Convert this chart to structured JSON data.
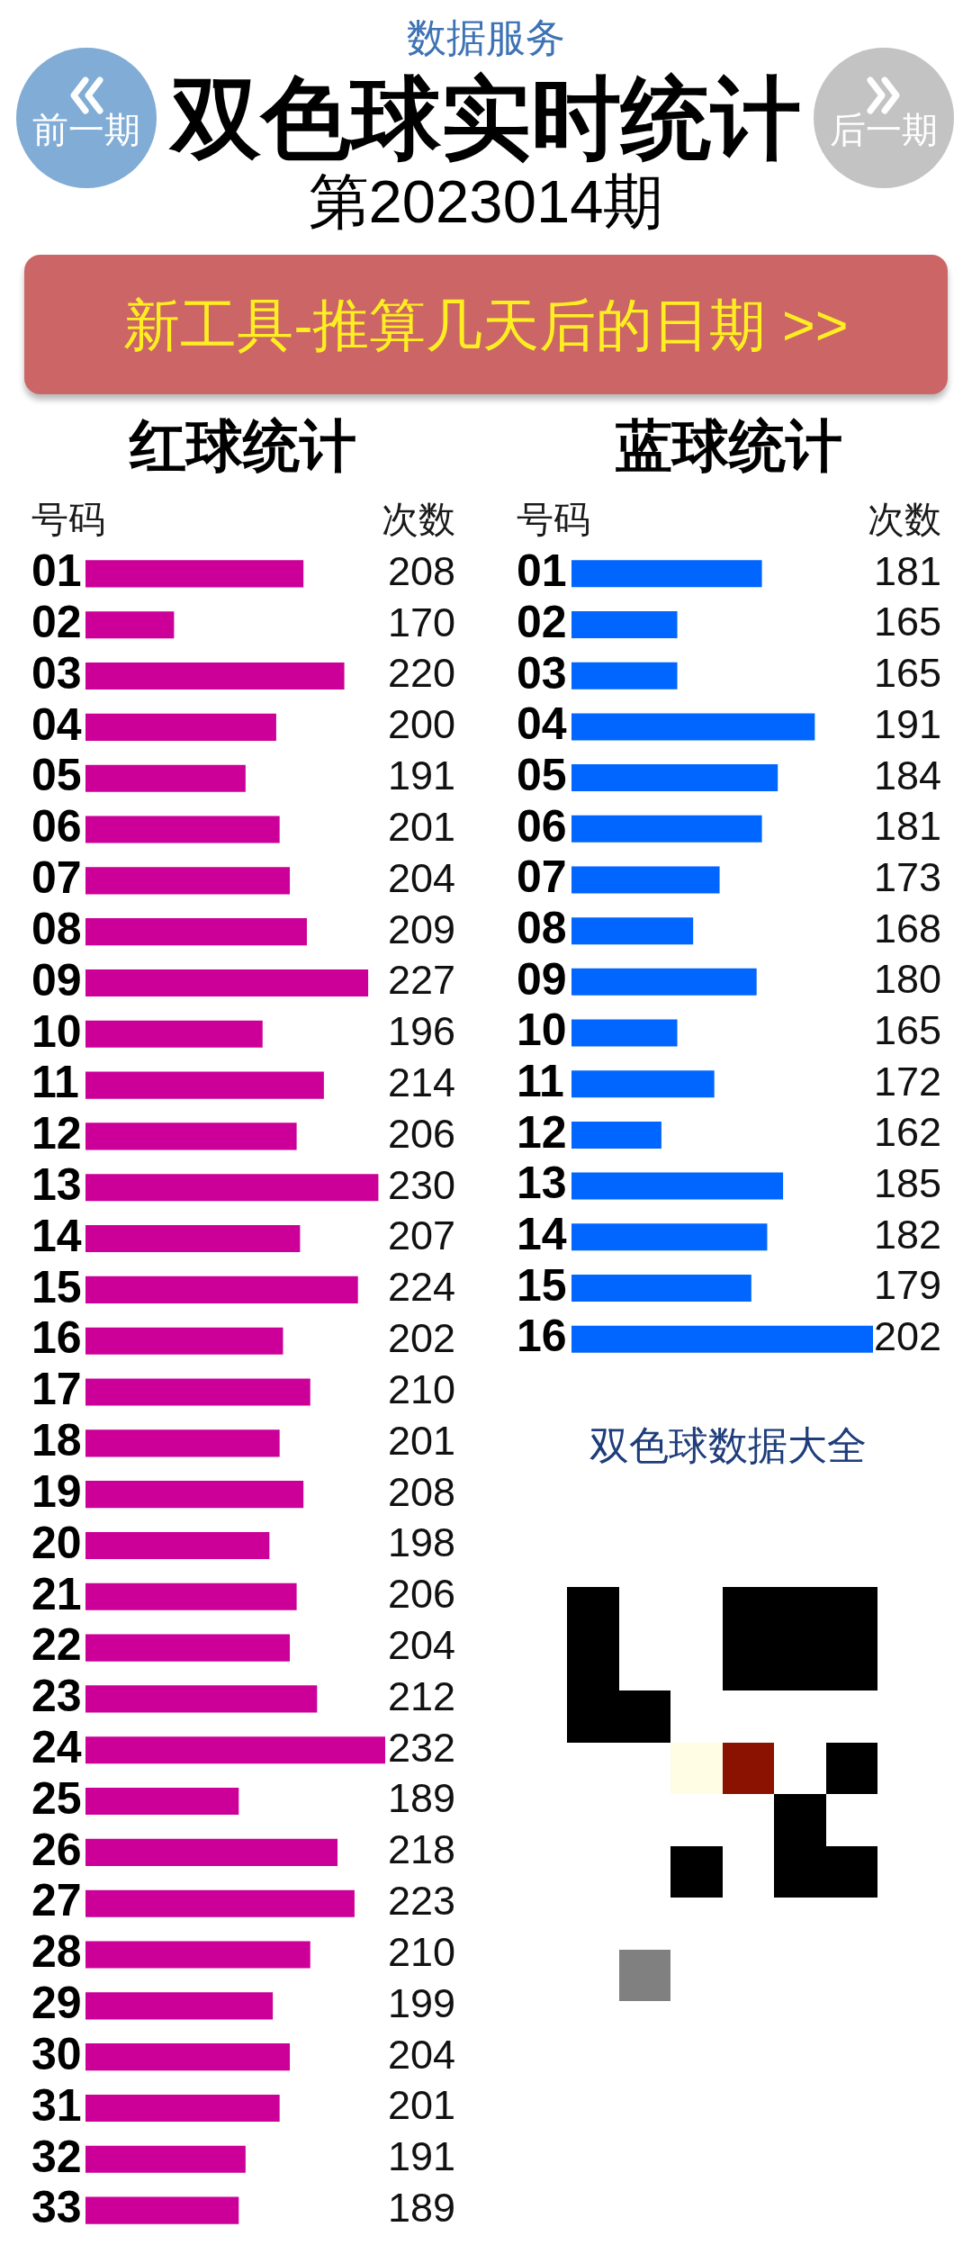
{
  "chart_data": [
    {
      "type": "bar",
      "orientation": "horizontal",
      "title": "红球统计",
      "ylabel": "号码",
      "xlabel": "次数",
      "categories": [
        "01",
        "02",
        "03",
        "04",
        "05",
        "06",
        "07",
        "08",
        "09",
        "10",
        "11",
        "12",
        "13",
        "14",
        "15",
        "16",
        "17",
        "18",
        "19",
        "20",
        "21",
        "22",
        "23",
        "24",
        "25",
        "26",
        "27",
        "28",
        "29",
        "30",
        "31",
        "32",
        "33"
      ],
      "values": [
        208,
        170,
        220,
        200,
        191,
        201,
        204,
        209,
        227,
        196,
        214,
        206,
        230,
        207,
        224,
        202,
        210,
        201,
        208,
        198,
        206,
        204,
        212,
        232,
        189,
        218,
        223,
        210,
        199,
        204,
        201,
        191,
        189
      ],
      "color": "#cc0099",
      "xlim": [
        144,
        232
      ],
      "tick_labels": "y",
      "data_labels": true,
      "annotations": [
        "数据服务",
        "双色球实时统计",
        "第2023014期",
        "前一期",
        "后一期",
        "新工具-推算几天后的日期 >>"
      ]
    },
    {
      "type": "bar",
      "orientation": "horizontal",
      "title": "蓝球统计",
      "ylabel": "号码",
      "xlabel": "次数",
      "categories": [
        "01",
        "02",
        "03",
        "04",
        "05",
        "06",
        "07",
        "08",
        "09",
        "10",
        "11",
        "12",
        "13",
        "14",
        "15",
        "16"
      ],
      "values": [
        181,
        165,
        165,
        191,
        184,
        181,
        173,
        168,
        180,
        165,
        172,
        162,
        185,
        182,
        179,
        202
      ],
      "color": "#0066ff",
      "xlim": [
        145,
        202
      ],
      "tick_labels": "y",
      "data_labels": true,
      "annotations": [
        "双色球数据大全"
      ]
    }
  ]
}
